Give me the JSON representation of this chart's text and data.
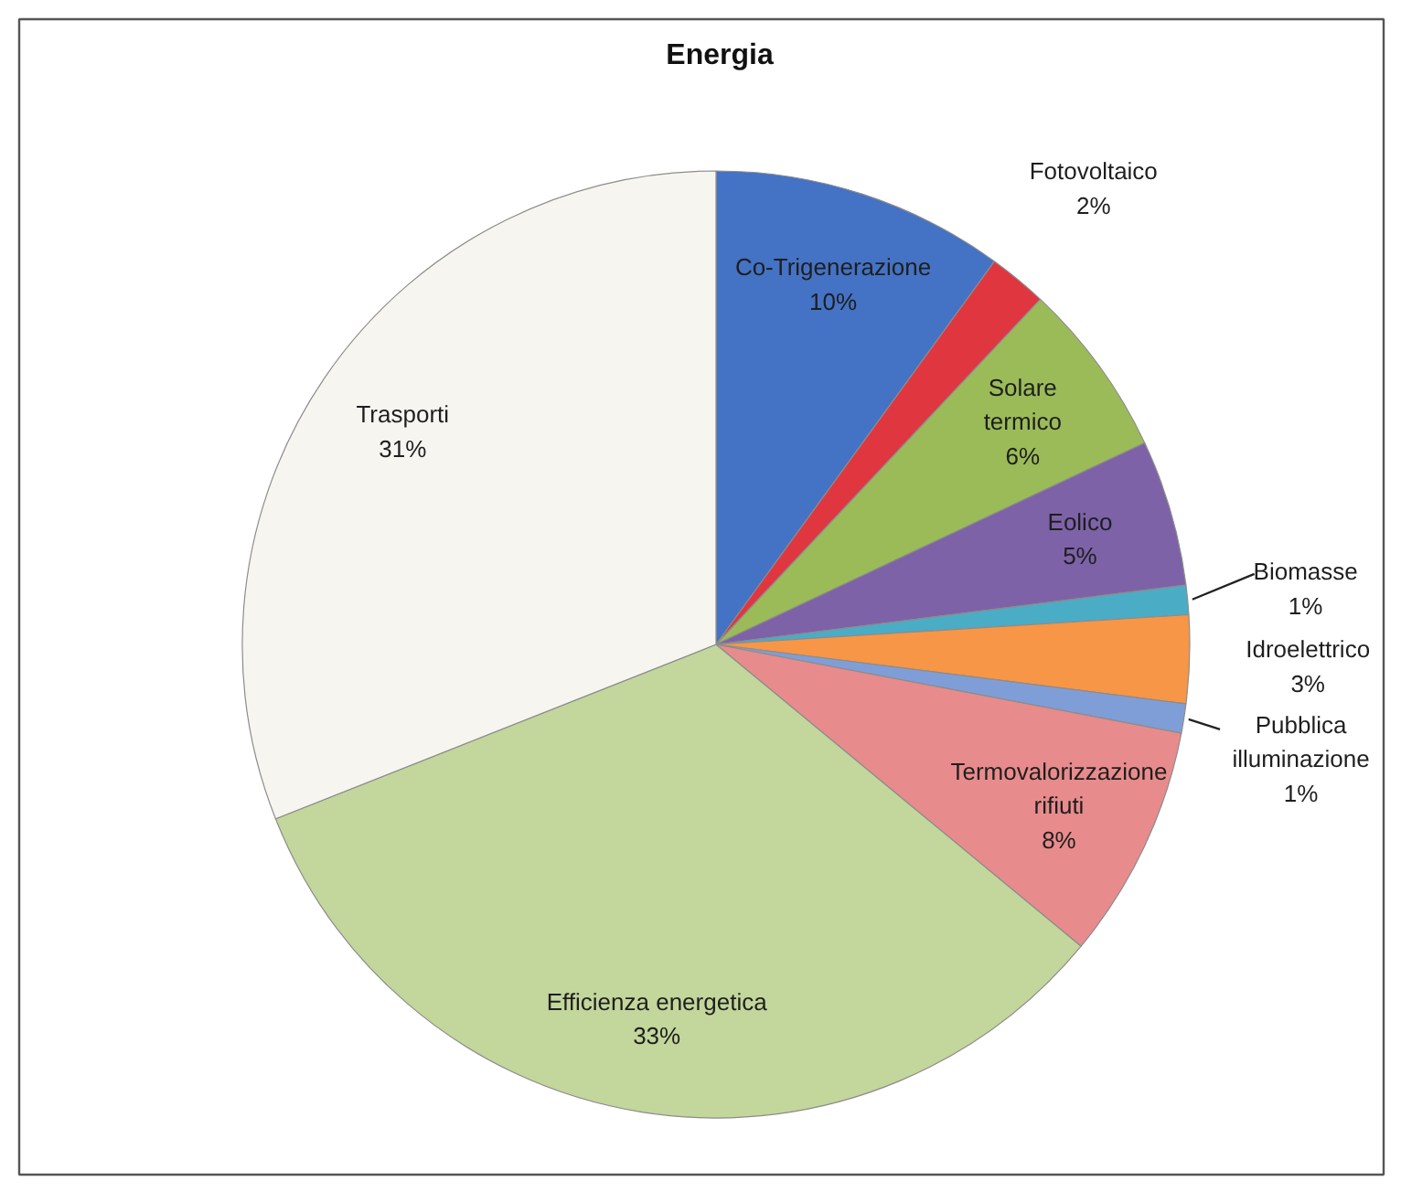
{
  "chart_data": {
    "type": "pie",
    "title": "Energia",
    "categories": [
      "Co-Trigenerazione",
      "Fotovoltaico",
      "Solare termico",
      "Eolico",
      "Biomasse",
      "Idroelettrico",
      "Pubblica illuminazione",
      "Termovalorizzazione rifiuti",
      "Efficienza energetica",
      "Trasporti"
    ],
    "values": [
      10,
      2,
      6,
      5,
      1,
      3,
      1,
      8,
      33,
      31
    ],
    "colors": [
      "#4472c4",
      "#e0363f",
      "#9bbb59",
      "#7e62a8",
      "#4bacc6",
      "#f79646",
      "#7f9ed8",
      "#e88b8c",
      "#c3d69b",
      "#f6f5f0"
    ],
    "value_labels": [
      "10%",
      "2%",
      "6%",
      "5%",
      "1%",
      "3%",
      "1%",
      "8%",
      "33%",
      "31%"
    ]
  }
}
